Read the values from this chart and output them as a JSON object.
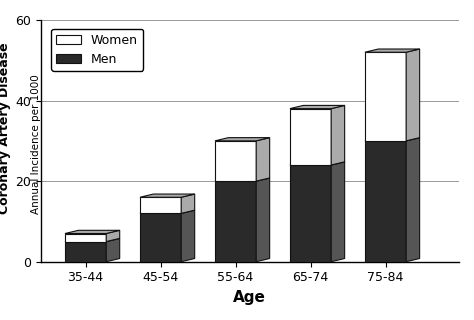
{
  "categories": [
    "35-44",
    "45-54",
    "55-64",
    "65-74",
    "75-84"
  ],
  "men_values": [
    5,
    12,
    20,
    24,
    30
  ],
  "women_values": [
    2,
    4,
    10,
    14,
    22
  ],
  "men_color": "#2a2a2a",
  "women_color": "#ffffff",
  "men_side_color": "#555555",
  "women_side_color": "#aaaaaa",
  "top_color_men": "#555555",
  "top_color_women": "#aaaaaa",
  "bar_edge_color": "#111111",
  "title_bold": "Coronary Artery Disease",
  "ylabel_small": "Annual Incidence per 1000",
  "xlabel": "Age",
  "ylim": [
    0,
    60
  ],
  "yticks": [
    0,
    20,
    40,
    60
  ],
  "bar_width": 0.55,
  "depth": 0.12,
  "background_color": "#ffffff",
  "grid_color": "#999999"
}
